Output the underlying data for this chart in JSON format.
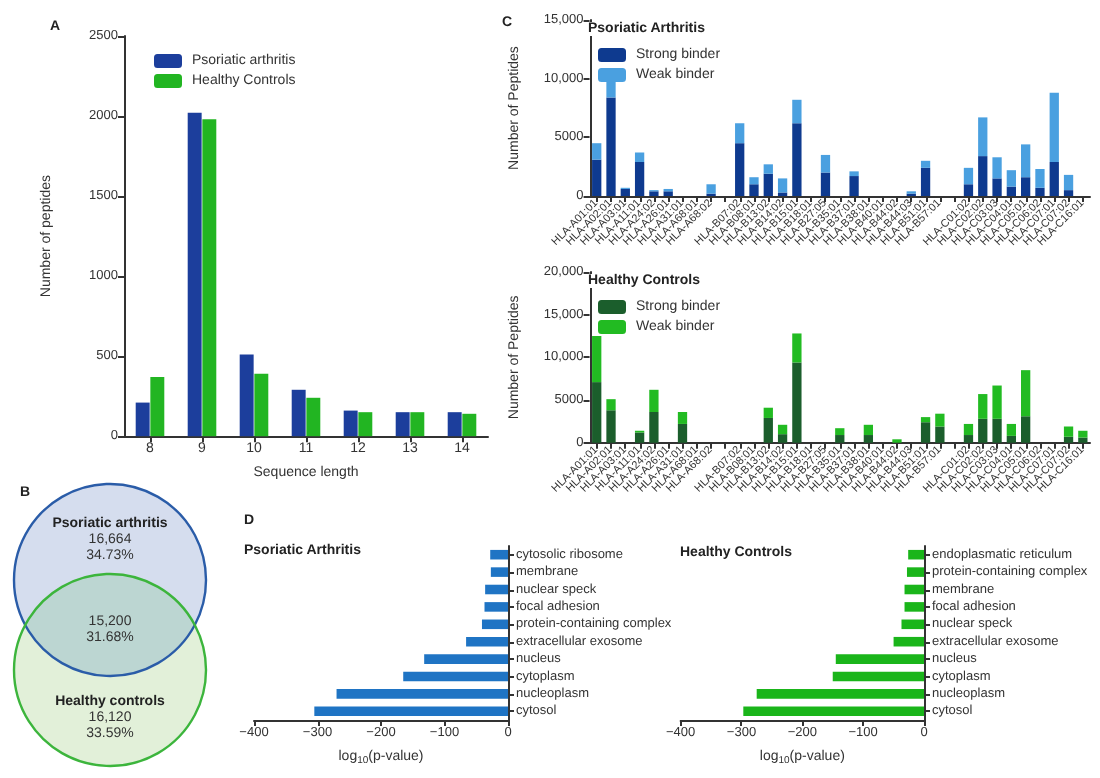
{
  "chart_data": [
    {
      "type": "bar",
      "title": "A",
      "xlabel": "Sequence length",
      "ylabel": "Number of peptides",
      "categories": [
        "8",
        "9",
        "10",
        "11",
        "12",
        "13",
        "14"
      ],
      "series": [
        {
          "name": "Psoriatic arthritis",
          "color": "#1c3e9c",
          "values": [
            210,
            2020,
            510,
            290,
            160,
            150,
            150
          ]
        },
        {
          "name": "Healthy Controls",
          "color": "#22b522",
          "values": [
            370,
            1980,
            390,
            240,
            150,
            150,
            140
          ]
        }
      ],
      "ylim": [
        0,
        2500
      ],
      "yticks": [
        0,
        500,
        1000,
        1500,
        2000,
        2500
      ],
      "legend": "top left"
    },
    {
      "type": "other",
      "title": "B",
      "categories": [
        "Psoriatic arthritis",
        null,
        "Healthy controls"
      ],
      "values": [
        16664,
        15200,
        16120
      ],
      "value_labels": [
        "16,664",
        "15,200",
        "16,120"
      ],
      "annotations": [
        "34.73%",
        "31.68%",
        "33.59%"
      ],
      "colors": [
        "#d5ddee",
        "#bcd6d2",
        "#e2f0d9"
      ]
    },
    {
      "type": "bar",
      "title": "C",
      "legend_title": "Psoriatic Arthritis",
      "ylabel": "Number of Peptides",
      "stacked": true,
      "legend": "top left",
      "categories": [
        "HLA-A01:01",
        "HLA-A02:01",
        "HLA-A03:01",
        "HLA-A11:01",
        "HLA-A24:02",
        "HLA-A26:01",
        "HLA-A31:01",
        "HLA-A68:01",
        "HLA-A68:02",
        null,
        "HLA-B07:02",
        "HLA-B08:01",
        "HLA-B13:02",
        "HLA-B14:02",
        "HLA-B15:01",
        "HLA-B18:01",
        "HLA-B27:05",
        "HLA-B35:01",
        "HLA-B37:01",
        "HLA-B38:01",
        "HLA-B40:01",
        "HLA-B44:02",
        "HLA-B44:03",
        "HLA-B51:01",
        "HLA-B57:01",
        null,
        "HLA-C01:02",
        "HLA-C02:02",
        "HLA-C03:03",
        "HLA-C04:01",
        "HLA-C05:01",
        "HLA-C06:02",
        "HLA-C07:01",
        "HLA-C07:02",
        "HLA-C16:01"
      ],
      "series": [
        {
          "name": "Strong binder",
          "color": "#0e3a8f",
          "values": [
            3100,
            8400,
            600,
            2900,
            400,
            400,
            0,
            0,
            200,
            null,
            4500,
            1000,
            1900,
            300,
            6200,
            0,
            2000,
            0,
            1700,
            0,
            0,
            0,
            200,
            2400,
            0,
            null,
            1000,
            3400,
            1500,
            800,
            1600,
            700,
            2900,
            500,
            0
          ]
        },
        {
          "name": "Weak binder",
          "color": "#4aa0e0",
          "values": [
            1400,
            1700,
            100,
            800,
            100,
            200,
            0,
            0,
            800,
            null,
            1700,
            600,
            800,
            1200,
            2000,
            0,
            1500,
            0,
            400,
            0,
            0,
            0,
            200,
            600,
            0,
            null,
            1400,
            3300,
            1800,
            1400,
            2800,
            1600,
            5900,
            1300,
            0
          ]
        }
      ],
      "ylim": [
        0,
        15000
      ],
      "yticks": [
        0,
        {
          "value": 5000,
          "label": "5000"
        },
        {
          "value": 10000,
          "label": "10,000"
        },
        {
          "value": 15000,
          "label": "15,000"
        }
      ]
    },
    {
      "type": "bar",
      "legend_title": "Healthy Controls",
      "ylabel": "Number of Peptides",
      "stacked": true,
      "legend": "top left",
      "categories": [
        "HLA-A01:01",
        "HLA-A02:01",
        "HLA-A03:01",
        "HLA-A11:01",
        "HLA-A24:02",
        "HLA-A26:01",
        "HLA-A31:01",
        "HLA-A68:01",
        "HLA-A68:02",
        null,
        "HLA-B07:02",
        "HLA-B08:01",
        "HLA-B13:02",
        "HLA-B14:02",
        "HLA-B15:01",
        "HLA-B18:01",
        "HLA-B27:05",
        "HLA-B35:01",
        "HLA-B37:01",
        "HLA-B38:01",
        "HLA-B40:01",
        "HLA-B44:02",
        "HLA-B44:03",
        "HLA-B51:01",
        "HLA-B57:01",
        null,
        "HLA-C01:02",
        "HLA-C02:02",
        "HLA-C03:03",
        "HLA-C04:01",
        "HLA-C05:01",
        "HLA-C06:02",
        "HLA-C07:01",
        "HLA-C07:02",
        "HLA-C16:01"
      ],
      "series": [
        {
          "name": "Strong binder",
          "color": "#1b5e2c",
          "values": [
            7100,
            3800,
            0,
            1200,
            3600,
            0,
            2200,
            0,
            0,
            null,
            0,
            0,
            2900,
            1000,
            9400,
            0,
            0,
            900,
            0,
            900,
            0,
            0,
            0,
            2400,
            1900,
            null,
            900,
            2800,
            2800,
            800,
            3100,
            0,
            0,
            700,
            600
          ]
        },
        {
          "name": "Weak binder",
          "color": "#22bb22",
          "values": [
            5400,
            1300,
            0,
            200,
            2600,
            0,
            1400,
            0,
            0,
            null,
            0,
            0,
            1200,
            1100,
            3400,
            0,
            0,
            800,
            0,
            1200,
            0,
            400,
            0,
            600,
            1500,
            null,
            1300,
            2900,
            3900,
            1400,
            5400,
            0,
            0,
            1200,
            800
          ]
        }
      ],
      "ylim": [
        0,
        20000
      ],
      "yticks": [
        0,
        {
          "value": 5000,
          "label": "5000"
        },
        {
          "value": 10000,
          "label": "10,000"
        },
        {
          "value": 15000,
          "label": "15,000"
        },
        {
          "value": 20000,
          "label": "20,000"
        }
      ]
    },
    {
      "type": "bar",
      "title": "D",
      "subtitle": "Psoriatic Arthritis",
      "orientation": "horizontal",
      "xlabel": "log$_{10}$(p-value)",
      "categories": [
        "cytosolic ribosome",
        "membrane",
        "nuclear speck",
        "focal adhesion",
        "protein-containing complex",
        "extracellular exosome",
        "nucleus",
        "cytoplasm",
        "nucleoplasm",
        "cytosol"
      ],
      "values": [
        -28,
        -27,
        -36,
        -37,
        -41,
        -66,
        -132,
        -165,
        -270,
        -305
      ],
      "color": "#1f74c4",
      "xlim": [
        -400,
        0
      ],
      "xticks": [
        {
          "value": -400,
          "label": "−400"
        },
        {
          "value": -300,
          "label": "−300"
        },
        {
          "value": -200,
          "label": "−200"
        },
        {
          "value": -100,
          "label": "−100"
        },
        0
      ]
    },
    {
      "type": "bar",
      "title": "Healthy Controls",
      "orientation": "horizontal",
      "xlabel": "log$_{10}$(p-value)",
      "categories": [
        "endoplasmatic reticulum",
        "protein-containing complex",
        "membrane",
        "focal adhesion",
        "nuclear speck",
        "extracellular exosome",
        "nucleus",
        "cytoplasm",
        "nucleoplasm",
        "cytosol"
      ],
      "values": [
        -26,
        -28,
        -32,
        -32,
        -37,
        -50,
        -145,
        -150,
        -275,
        -297
      ],
      "color": "#1ab51a",
      "xlim": [
        -400,
        0
      ],
      "xticks": [
        {
          "value": -400,
          "label": "−400"
        },
        {
          "value": -300,
          "label": "−300"
        },
        {
          "value": -200,
          "label": "−200"
        },
        {
          "value": -100,
          "label": "−100"
        },
        0
      ]
    }
  ]
}
